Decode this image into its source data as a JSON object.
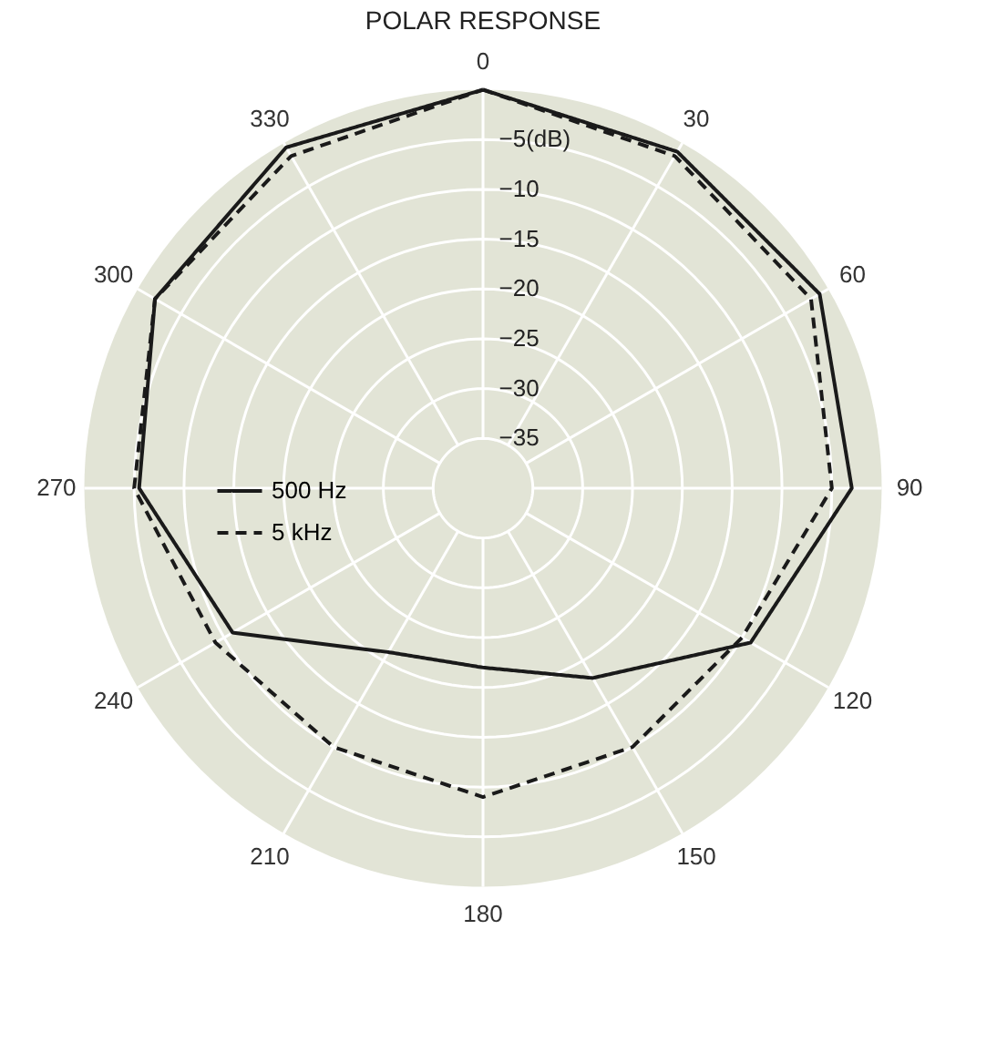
{
  "chart_data": {
    "type": "radar",
    "title": "POLAR RESPONSE",
    "categories": [
      "0",
      "30",
      "60",
      "90",
      "120",
      "150",
      "180",
      "210",
      "240",
      "270",
      "300",
      "330"
    ],
    "series": [
      {
        "name": "500 Hz",
        "color": "#1a1a1a",
        "line_style": "solid",
        "values": [
          0,
          -1,
          -1,
          -3,
          -9,
          -18,
          -22,
          -21,
          -11,
          -5.5,
          -2,
          -0.5
        ]
      },
      {
        "name": "5 kHz",
        "color": "#1a1a1a",
        "line_style": "dashed",
        "values": [
          0,
          -1.5,
          -2,
          -5,
          -10,
          -10,
          -9,
          -10,
          -9,
          -5,
          -2,
          -1.5
        ]
      }
    ],
    "ylim": [
      -40,
      0
    ],
    "yticks": [
      {
        "value": -5,
        "label": "−5(dB)"
      },
      {
        "value": -10,
        "label": "−10"
      },
      {
        "value": -15,
        "label": "−15"
      },
      {
        "value": -20,
        "label": "−20"
      },
      {
        "value": -25,
        "label": "−25"
      },
      {
        "value": -30,
        "label": "−30"
      },
      {
        "value": -35,
        "label": "−35"
      }
    ],
    "grid": true,
    "legend": "left",
    "marker": "none"
  }
}
